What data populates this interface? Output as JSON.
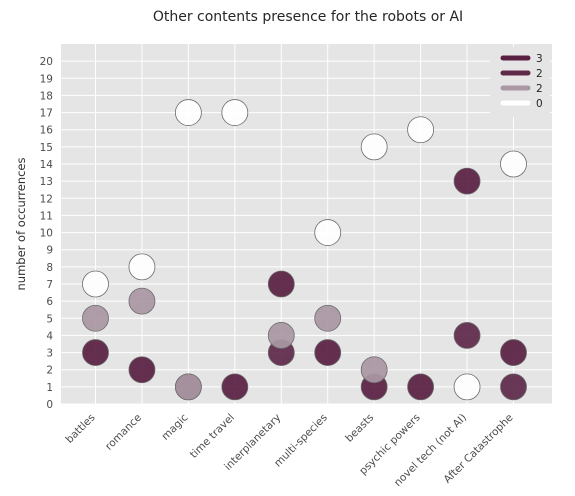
{
  "chart_data": {
    "type": "scatter",
    "title": "Other contents presence for the robots or AI",
    "xlabel": "",
    "ylabel": "number of occurrences",
    "ylim": [
      0,
      21
    ],
    "yticks": [
      0,
      1,
      2,
      3,
      4,
      5,
      6,
      7,
      8,
      9,
      10,
      11,
      12,
      13,
      14,
      15,
      16,
      17,
      18,
      19,
      20
    ],
    "grid": true,
    "legend_position": "top-right",
    "categories": [
      "battles",
      "romance",
      "magic",
      "time travel",
      "interplanetary",
      "multi-species",
      "beasts",
      "psychic powers",
      "novel tech (not AI)",
      "After Catastrophe"
    ],
    "series": [
      {
        "name": "3",
        "color": "#5a2043",
        "values": [
          3,
          2,
          1,
          1,
          7,
          3,
          1,
          1,
          13,
          3
        ]
      },
      {
        "name": "2",
        "color": "#5f2a4a",
        "values": [
          null,
          null,
          null,
          null,
          3,
          null,
          null,
          null,
          4,
          1
        ]
      },
      {
        "name": "2",
        "color": "#aa98a4",
        "values": [
          5,
          6,
          1,
          null,
          4,
          5,
          2,
          null,
          null,
          null
        ]
      },
      {
        "name": "0",
        "color": "#ffffff",
        "values": [
          7,
          8,
          17,
          17,
          null,
          10,
          15,
          16,
          1,
          14
        ]
      }
    ]
  }
}
